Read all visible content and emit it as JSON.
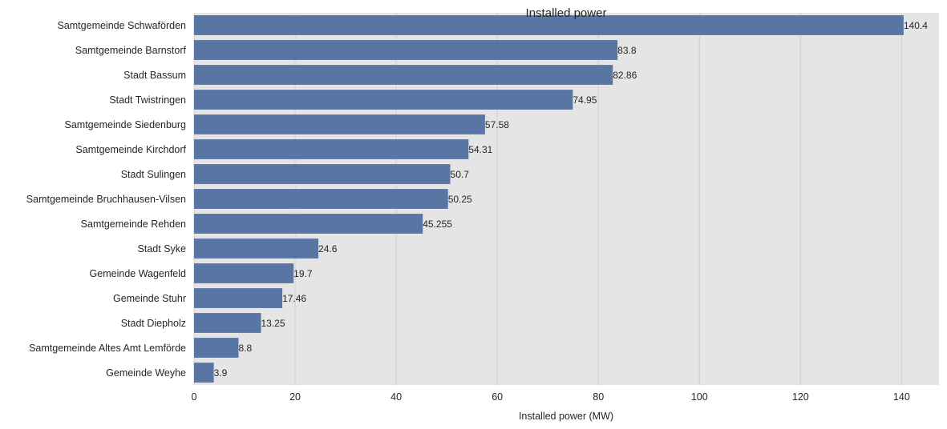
{
  "chart_data": {
    "type": "bar",
    "orientation": "horizontal",
    "title": "Installed power",
    "xlabel": "Installed power (MW)",
    "ylabel": "",
    "xlim": [
      0,
      147.4
    ],
    "xticks": [
      0,
      20,
      40,
      60,
      80,
      100,
      120,
      140
    ],
    "grid": true,
    "bar_color": "#5975a4",
    "background_color": "#e5e5e5",
    "categories": [
      "Samtgemeinde Schwaförden",
      "Samtgemeinde Barnstorf",
      "Stadt Bassum",
      "Stadt Twistringen",
      "Samtgemeinde Siedenburg",
      "Samtgemeinde Kirchdorf",
      "Stadt Sulingen",
      "Samtgemeinde Bruchhausen-Vilsen",
      "Samtgemeinde Rehden",
      "Stadt Syke",
      "Gemeinde Wagenfeld",
      "Gemeinde Stuhr",
      "Stadt Diepholz",
      "Samtgemeinde Altes Amt Lemförde",
      "Gemeinde Weyhe"
    ],
    "values": [
      140.4,
      83.8,
      82.86,
      74.95,
      57.58,
      54.31,
      50.7,
      50.25,
      45.255,
      24.6,
      19.7,
      17.46,
      13.25,
      8.8,
      3.9
    ],
    "value_labels": [
      "140.4",
      "83.8",
      "82.86",
      "74.95",
      "57.58",
      "54.31",
      "50.7",
      "50.25",
      "45.255",
      "24.6",
      "19.7",
      "17.46",
      "13.25",
      "8.8",
      "3.9"
    ]
  }
}
